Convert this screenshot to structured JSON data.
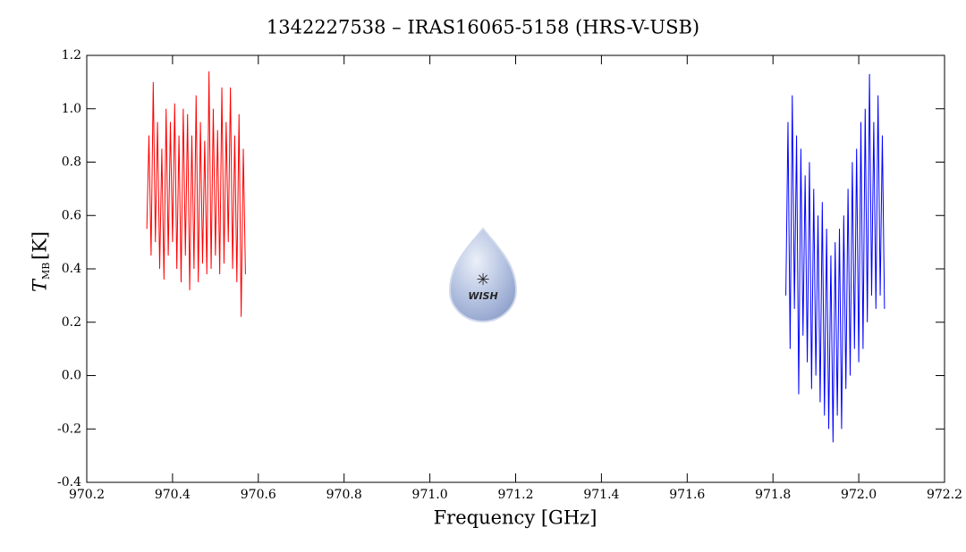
{
  "chart_data": {
    "type": "line",
    "title": "1342227538 – IRAS16065-5158 (HRS-V-USB)",
    "xlabel": "Frequency [GHz]",
    "ylabel": {
      "symbol": "T",
      "subscript": "MB",
      "unit": "[K]"
    },
    "logo_text": "WISH",
    "xlim": [
      970.2,
      972.2
    ],
    "xticks": [
      970.2,
      970.4,
      970.6,
      970.8,
      {
        "value": 971.0,
        "label": "971.0"
      },
      971.2,
      971.4,
      971.6,
      971.8,
      {
        "value": 972.0,
        "label": "972.0"
      },
      972.2
    ],
    "ylim": [
      -0.4,
      1.2
    ],
    "yticks": [
      -0.4,
      -0.2,
      {
        "value": 0.0,
        "label": "0.0"
      },
      0.2,
      0.4,
      0.6,
      0.8,
      {
        "value": 1.0,
        "label": "1.0"
      },
      1.2
    ],
    "series": [
      {
        "color": "#ff0000",
        "x": [
          970.34,
          970.345,
          970.35,
          970.355,
          970.36,
          970.365,
          970.37,
          970.375,
          970.38,
          970.385,
          970.39,
          970.395,
          970.4,
          970.405,
          970.41,
          970.415,
          970.42,
          970.425,
          970.43,
          970.435,
          970.44,
          970.445,
          970.45,
          970.455,
          970.46,
          970.465,
          970.47,
          970.475,
          970.48,
          970.485,
          970.49,
          970.495,
          970.5,
          970.505,
          970.51,
          970.515,
          970.52,
          970.525,
          970.53,
          970.535,
          970.54,
          970.545,
          970.55,
          970.555,
          970.56,
          970.565,
          970.57
        ],
        "values": [
          0.55,
          0.9,
          0.45,
          1.1,
          0.5,
          0.95,
          0.4,
          0.85,
          0.36,
          1.0,
          0.45,
          0.95,
          0.5,
          1.02,
          0.4,
          0.9,
          0.35,
          1.0,
          0.45,
          0.98,
          0.32,
          0.9,
          0.4,
          1.05,
          0.35,
          0.95,
          0.42,
          0.88,
          0.38,
          1.14,
          0.4,
          1.0,
          0.45,
          0.92,
          0.38,
          1.08,
          0.42,
          0.95,
          0.5,
          1.08,
          0.4,
          0.9,
          0.35,
          0.98,
          0.22,
          0.85,
          0.38
        ]
      },
      {
        "color": "#0000ff",
        "x": [
          971.83,
          971.835,
          971.84,
          971.845,
          971.85,
          971.855,
          971.86,
          971.865,
          971.87,
          971.875,
          971.88,
          971.885,
          971.89,
          971.895,
          971.9,
          971.905,
          971.91,
          971.915,
          971.92,
          971.925,
          971.93,
          971.935,
          971.94,
          971.945,
          971.95,
          971.955,
          971.96,
          971.965,
          971.97,
          971.975,
          971.98,
          971.985,
          971.99,
          971.995,
          972.0,
          972.005,
          972.01,
          972.015,
          972.02,
          972.025,
          972.03,
          972.035,
          972.04,
          972.045,
          972.05,
          972.055,
          972.06
        ],
        "values": [
          0.3,
          0.95,
          0.1,
          1.05,
          0.25,
          0.9,
          -0.07,
          0.85,
          0.15,
          0.75,
          0.05,
          0.8,
          -0.05,
          0.7,
          0.0,
          0.6,
          -0.1,
          0.65,
          -0.15,
          0.55,
          -0.2,
          0.45,
          -0.25,
          0.5,
          -0.15,
          0.55,
          -0.2,
          0.6,
          -0.05,
          0.7,
          0.0,
          0.8,
          0.1,
          0.85,
          0.05,
          0.95,
          0.1,
          1.0,
          0.2,
          1.13,
          0.3,
          0.95,
          0.25,
          1.05,
          0.3,
          0.9,
          0.25
        ]
      }
    ]
  }
}
